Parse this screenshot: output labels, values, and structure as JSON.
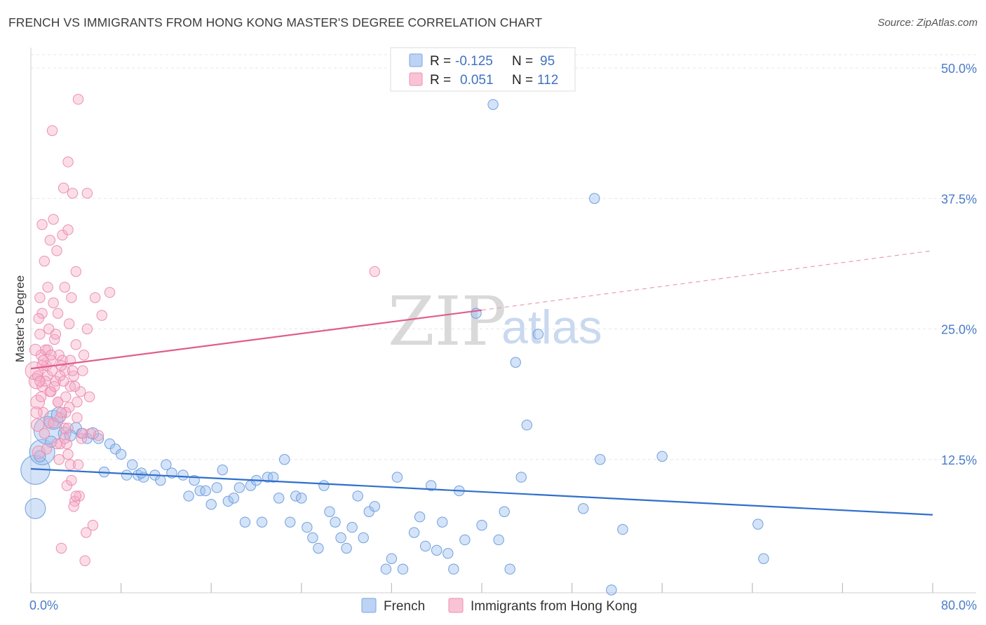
{
  "header": {
    "title": "FRENCH VS IMMIGRANTS FROM HONG KONG MASTER'S DEGREE CORRELATION CHART",
    "source": "Source: ZipAtlas.com"
  },
  "watermark": {
    "part1": "ZIP",
    "part2": "atlas"
  },
  "chart_data": {
    "type": "scatter",
    "title": "FRENCH VS IMMIGRANTS FROM HONG KONG MASTER'S DEGREE CORRELATION CHART",
    "ylabel": "Master's Degree",
    "xlim": [
      0,
      80
    ],
    "ylim": [
      0,
      50
    ],
    "x_tick_labels": [
      "0.0%",
      "80.0%"
    ],
    "y_ticks": [
      12.5,
      25.0,
      37.5,
      50.0
    ],
    "y_tick_labels": [
      "12.5%",
      "25.0%",
      "37.5%",
      "50.0%"
    ],
    "grid": true,
    "legend_position": "top-center",
    "legend": [
      {
        "r_label": "R =",
        "r_value": "-0.125",
        "n_label": "N =",
        "n_value": "95"
      },
      {
        "r_label": "R =",
        "r_value": "0.051",
        "n_label": "N =",
        "n_value": "112"
      }
    ],
    "series": [
      {
        "name": "French",
        "color": "#8fb4e8",
        "line_color": "#2f6fcd",
        "trend": {
          "x0": 0,
          "y0": 11.6,
          "x1": 80,
          "y1": 7.2
        },
        "points": [
          [
            0.4,
            11.5,
            2.3
          ],
          [
            0.4,
            7.8,
            1.6
          ],
          [
            1.0,
            13.2,
            2.0
          ],
          [
            1.5,
            15.3,
            2.2
          ],
          [
            2.0,
            16.3,
            1.5
          ],
          [
            2.5,
            16.8,
            1.2
          ],
          [
            3.0,
            15.0,
            1.0
          ],
          [
            4.0,
            15.5,
            0.9
          ],
          [
            4.5,
            15.0,
            0.8
          ],
          [
            5.0,
            14.5,
            0.8
          ],
          [
            6.0,
            14.5,
            0.8
          ],
          [
            6.5,
            11.3,
            0.8
          ],
          [
            7.0,
            14.0,
            0.8
          ],
          [
            7.5,
            13.5,
            0.8
          ],
          [
            8.0,
            13.0,
            0.8
          ],
          [
            8.5,
            11.0,
            0.8
          ],
          [
            9.0,
            12.0,
            0.8
          ],
          [
            9.5,
            11.0,
            0.8
          ],
          [
            10.0,
            10.8,
            0.8
          ],
          [
            11.0,
            11.0,
            0.8
          ],
          [
            11.5,
            10.5,
            0.8
          ],
          [
            12.0,
            12.0,
            0.8
          ],
          [
            12.5,
            11.2,
            0.8
          ],
          [
            13.5,
            11.0,
            0.8
          ],
          [
            14.0,
            9.0,
            0.8
          ],
          [
            14.5,
            10.5,
            0.8
          ],
          [
            15.0,
            9.5,
            0.8
          ],
          [
            15.5,
            9.5,
            0.8
          ],
          [
            16.0,
            8.2,
            0.8
          ],
          [
            16.5,
            9.8,
            0.8
          ],
          [
            17.0,
            11.5,
            0.8
          ],
          [
            17.5,
            8.5,
            0.8
          ],
          [
            18.0,
            8.8,
            0.8
          ],
          [
            18.5,
            9.8,
            0.8
          ],
          [
            19.0,
            6.5,
            0.8
          ],
          [
            19.5,
            10.0,
            0.8
          ],
          [
            20.0,
            10.5,
            0.8
          ],
          [
            20.5,
            6.5,
            0.8
          ],
          [
            21.0,
            10.8,
            0.8
          ],
          [
            21.5,
            10.8,
            0.8
          ],
          [
            22.0,
            8.8,
            0.8
          ],
          [
            22.5,
            12.5,
            0.8
          ],
          [
            23.0,
            6.5,
            0.8
          ],
          [
            23.5,
            9.0,
            0.8
          ],
          [
            24.0,
            8.8,
            0.8
          ],
          [
            24.5,
            6.0,
            0.8
          ],
          [
            25.0,
            5.0,
            0.8
          ],
          [
            25.5,
            4.0,
            0.8
          ],
          [
            26.0,
            10.0,
            0.8
          ],
          [
            26.5,
            7.5,
            0.8
          ],
          [
            27.0,
            6.5,
            0.8
          ],
          [
            27.5,
            5.0,
            0.8
          ],
          [
            28.0,
            4.0,
            0.8
          ],
          [
            28.5,
            6.0,
            0.8
          ],
          [
            29.0,
            9.0,
            0.8
          ],
          [
            29.5,
            5.0,
            0.8
          ],
          [
            30.0,
            7.5,
            0.8
          ],
          [
            30.5,
            8.0,
            0.8
          ],
          [
            31.5,
            2.0,
            0.8
          ],
          [
            32.0,
            3.0,
            0.8
          ],
          [
            32.5,
            10.8,
            0.8
          ],
          [
            33.0,
            2.0,
            0.8
          ],
          [
            34.0,
            5.5,
            0.8
          ],
          [
            34.5,
            7.0,
            0.8
          ],
          [
            35.0,
            4.2,
            0.8
          ],
          [
            35.5,
            10.0,
            0.8
          ],
          [
            36.0,
            3.8,
            0.8
          ],
          [
            36.5,
            6.5,
            0.8
          ],
          [
            37.0,
            3.5,
            0.8
          ],
          [
            37.5,
            2.0,
            0.8
          ],
          [
            38.0,
            9.5,
            0.8
          ],
          [
            38.5,
            4.8,
            0.8
          ],
          [
            39.5,
            26.5,
            0.8
          ],
          [
            40.0,
            6.2,
            0.8
          ],
          [
            41.0,
            46.5,
            0.8
          ],
          [
            41.5,
            4.8,
            0.8
          ],
          [
            42.0,
            7.5,
            0.8
          ],
          [
            42.5,
            2.0,
            0.8
          ],
          [
            43.0,
            21.8,
            0.8
          ],
          [
            43.5,
            10.8,
            0.8
          ],
          [
            44.0,
            15.8,
            0.8
          ],
          [
            45.0,
            24.5,
            0.8
          ],
          [
            49.0,
            7.8,
            0.8
          ],
          [
            50.0,
            37.5,
            0.8
          ],
          [
            50.5,
            12.5,
            0.8
          ],
          [
            51.5,
            0.0,
            0.8
          ],
          [
            52.5,
            5.8,
            0.8
          ],
          [
            56.0,
            12.8,
            0.8
          ],
          [
            64.5,
            6.3,
            0.8
          ],
          [
            65.0,
            3.0,
            0.8
          ],
          [
            0.8,
            12.8,
            0.9
          ],
          [
            1.8,
            14.2,
            0.9
          ],
          [
            3.5,
            14.8,
            0.9
          ],
          [
            5.5,
            15.0,
            0.9
          ],
          [
            9.8,
            11.2,
            0.8
          ]
        ]
      },
      {
        "name": "Immigrants from Hong Kong",
        "color": "#f4a3bf",
        "line_color": "#e05d8c",
        "trend": {
          "x0": 0,
          "y0": 21.2,
          "x1": 40,
          "y1": 26.8,
          "dash_x1": 80,
          "dash_y1": 32.5
        },
        "points": [
          [
            0.3,
            21.0,
            1.4
          ],
          [
            0.5,
            20.0,
            1.2
          ],
          [
            0.6,
            18.0,
            1.1
          ],
          [
            0.6,
            15.8,
            1.0
          ],
          [
            0.7,
            13.2,
            1.0
          ],
          [
            0.8,
            24.5,
            0.8
          ],
          [
            0.8,
            28.0,
            0.8
          ],
          [
            0.9,
            22.5,
            0.8
          ],
          [
            1.0,
            35.0,
            0.8
          ],
          [
            1.0,
            26.5,
            0.8
          ],
          [
            1.0,
            19.5,
            0.8
          ],
          [
            1.1,
            17.0,
            0.8
          ],
          [
            1.2,
            31.5,
            0.8
          ],
          [
            1.3,
            23.0,
            0.8
          ],
          [
            1.4,
            21.5,
            0.8
          ],
          [
            1.5,
            29.0,
            0.8
          ],
          [
            1.5,
            20.5,
            0.8
          ],
          [
            1.6,
            25.0,
            0.8
          ],
          [
            1.7,
            33.5,
            0.8
          ],
          [
            1.8,
            22.0,
            0.8
          ],
          [
            1.8,
            19.0,
            0.8
          ],
          [
            1.9,
            44.0,
            0.8
          ],
          [
            2.0,
            35.5,
            0.8
          ],
          [
            2.0,
            27.5,
            0.8
          ],
          [
            2.1,
            24.0,
            0.8
          ],
          [
            2.2,
            20.0,
            0.8
          ],
          [
            2.3,
            32.5,
            0.8
          ],
          [
            2.4,
            26.5,
            0.8
          ],
          [
            2.5,
            22.5,
            0.8
          ],
          [
            2.6,
            16.5,
            0.8
          ],
          [
            2.6,
            14.0,
            0.8
          ],
          [
            2.7,
            4.0,
            0.8
          ],
          [
            2.8,
            34.0,
            0.8
          ],
          [
            2.9,
            38.5,
            0.8
          ],
          [
            3.0,
            29.0,
            0.8
          ],
          [
            3.0,
            21.0,
            0.8
          ],
          [
            3.1,
            18.5,
            0.8
          ],
          [
            3.2,
            10.0,
            0.8
          ],
          [
            3.3,
            41.0,
            0.8
          ],
          [
            3.3,
            34.5,
            0.8
          ],
          [
            3.4,
            25.5,
            0.8
          ],
          [
            3.5,
            19.5,
            0.8
          ],
          [
            3.5,
            12.0,
            0.8
          ],
          [
            3.6,
            28.0,
            0.8
          ],
          [
            3.7,
            38.0,
            0.8
          ],
          [
            3.8,
            20.5,
            0.8
          ],
          [
            3.9,
            8.5,
            0.8
          ],
          [
            4.0,
            30.5,
            0.8
          ],
          [
            4.0,
            23.5,
            0.8
          ],
          [
            4.1,
            16.5,
            0.8
          ],
          [
            4.2,
            47.0,
            0.8
          ],
          [
            4.3,
            9.0,
            0.8
          ],
          [
            4.5,
            14.5,
            0.8
          ],
          [
            4.6,
            21.0,
            0.8
          ],
          [
            4.7,
            22.5,
            0.8
          ],
          [
            4.8,
            2.8,
            0.8
          ],
          [
            4.9,
            5.5,
            0.8
          ],
          [
            5.0,
            25.0,
            0.8
          ],
          [
            5.0,
            38.0,
            0.8
          ],
          [
            5.2,
            18.5,
            0.8
          ],
          [
            5.3,
            15.0,
            0.8
          ],
          [
            5.5,
            6.2,
            0.8
          ],
          [
            5.7,
            28.0,
            0.8
          ],
          [
            6.0,
            14.8,
            0.8
          ],
          [
            6.3,
            26.3,
            0.8
          ],
          [
            7.0,
            28.5,
            0.8
          ],
          [
            30.5,
            30.5,
            0.8
          ],
          [
            0.4,
            23.0,
            0.9
          ],
          [
            0.5,
            17.0,
            0.9
          ],
          [
            0.7,
            26.0,
            0.8
          ],
          [
            0.9,
            18.5,
            0.8
          ],
          [
            1.2,
            15.0,
            0.8
          ],
          [
            1.4,
            13.5,
            0.8
          ],
          [
            1.6,
            16.0,
            0.8
          ],
          [
            1.9,
            21.0,
            0.8
          ],
          [
            2.2,
            24.5,
            0.8
          ],
          [
            2.4,
            18.0,
            0.8
          ],
          [
            2.6,
            20.5,
            0.8
          ],
          [
            2.8,
            22.0,
            0.8
          ],
          [
            3.0,
            15.5,
            0.8
          ],
          [
            3.2,
            14.0,
            0.8
          ],
          [
            3.4,
            17.5,
            0.8
          ],
          [
            3.6,
            10.5,
            0.8
          ],
          [
            3.8,
            8.0,
            0.8
          ],
          [
            4.0,
            9.0,
            0.8
          ],
          [
            4.2,
            12.0,
            0.8
          ],
          [
            4.4,
            19.0,
            0.8
          ],
          [
            4.6,
            15.0,
            0.8
          ],
          [
            1.0,
            21.5,
            0.8
          ],
          [
            1.3,
            20.0,
            0.8
          ],
          [
            1.7,
            19.0,
            0.8
          ],
          [
            2.0,
            16.0,
            0.8
          ],
          [
            2.3,
            14.0,
            0.8
          ],
          [
            2.5,
            12.5,
            0.8
          ],
          [
            2.7,
            21.5,
            0.8
          ],
          [
            2.9,
            20.0,
            0.8
          ],
          [
            3.1,
            17.0,
            0.8
          ],
          [
            3.3,
            15.5,
            0.8
          ],
          [
            3.5,
            22.0,
            0.8
          ],
          [
            3.7,
            21.0,
            0.8
          ],
          [
            3.9,
            19.5,
            0.8
          ],
          [
            4.1,
            18.0,
            0.8
          ],
          [
            0.6,
            20.5,
            0.8
          ],
          [
            0.8,
            20.0,
            0.8
          ],
          [
            1.1,
            22.0,
            0.8
          ],
          [
            1.5,
            23.0,
            0.8
          ],
          [
            1.8,
            22.5,
            0.8
          ],
          [
            2.1,
            19.5,
            0.8
          ],
          [
            2.4,
            18.0,
            0.8
          ],
          [
            2.7,
            17.0,
            0.8
          ],
          [
            3.0,
            14.5,
            0.8
          ],
          [
            3.3,
            13.0,
            0.8
          ]
        ]
      }
    ]
  }
}
